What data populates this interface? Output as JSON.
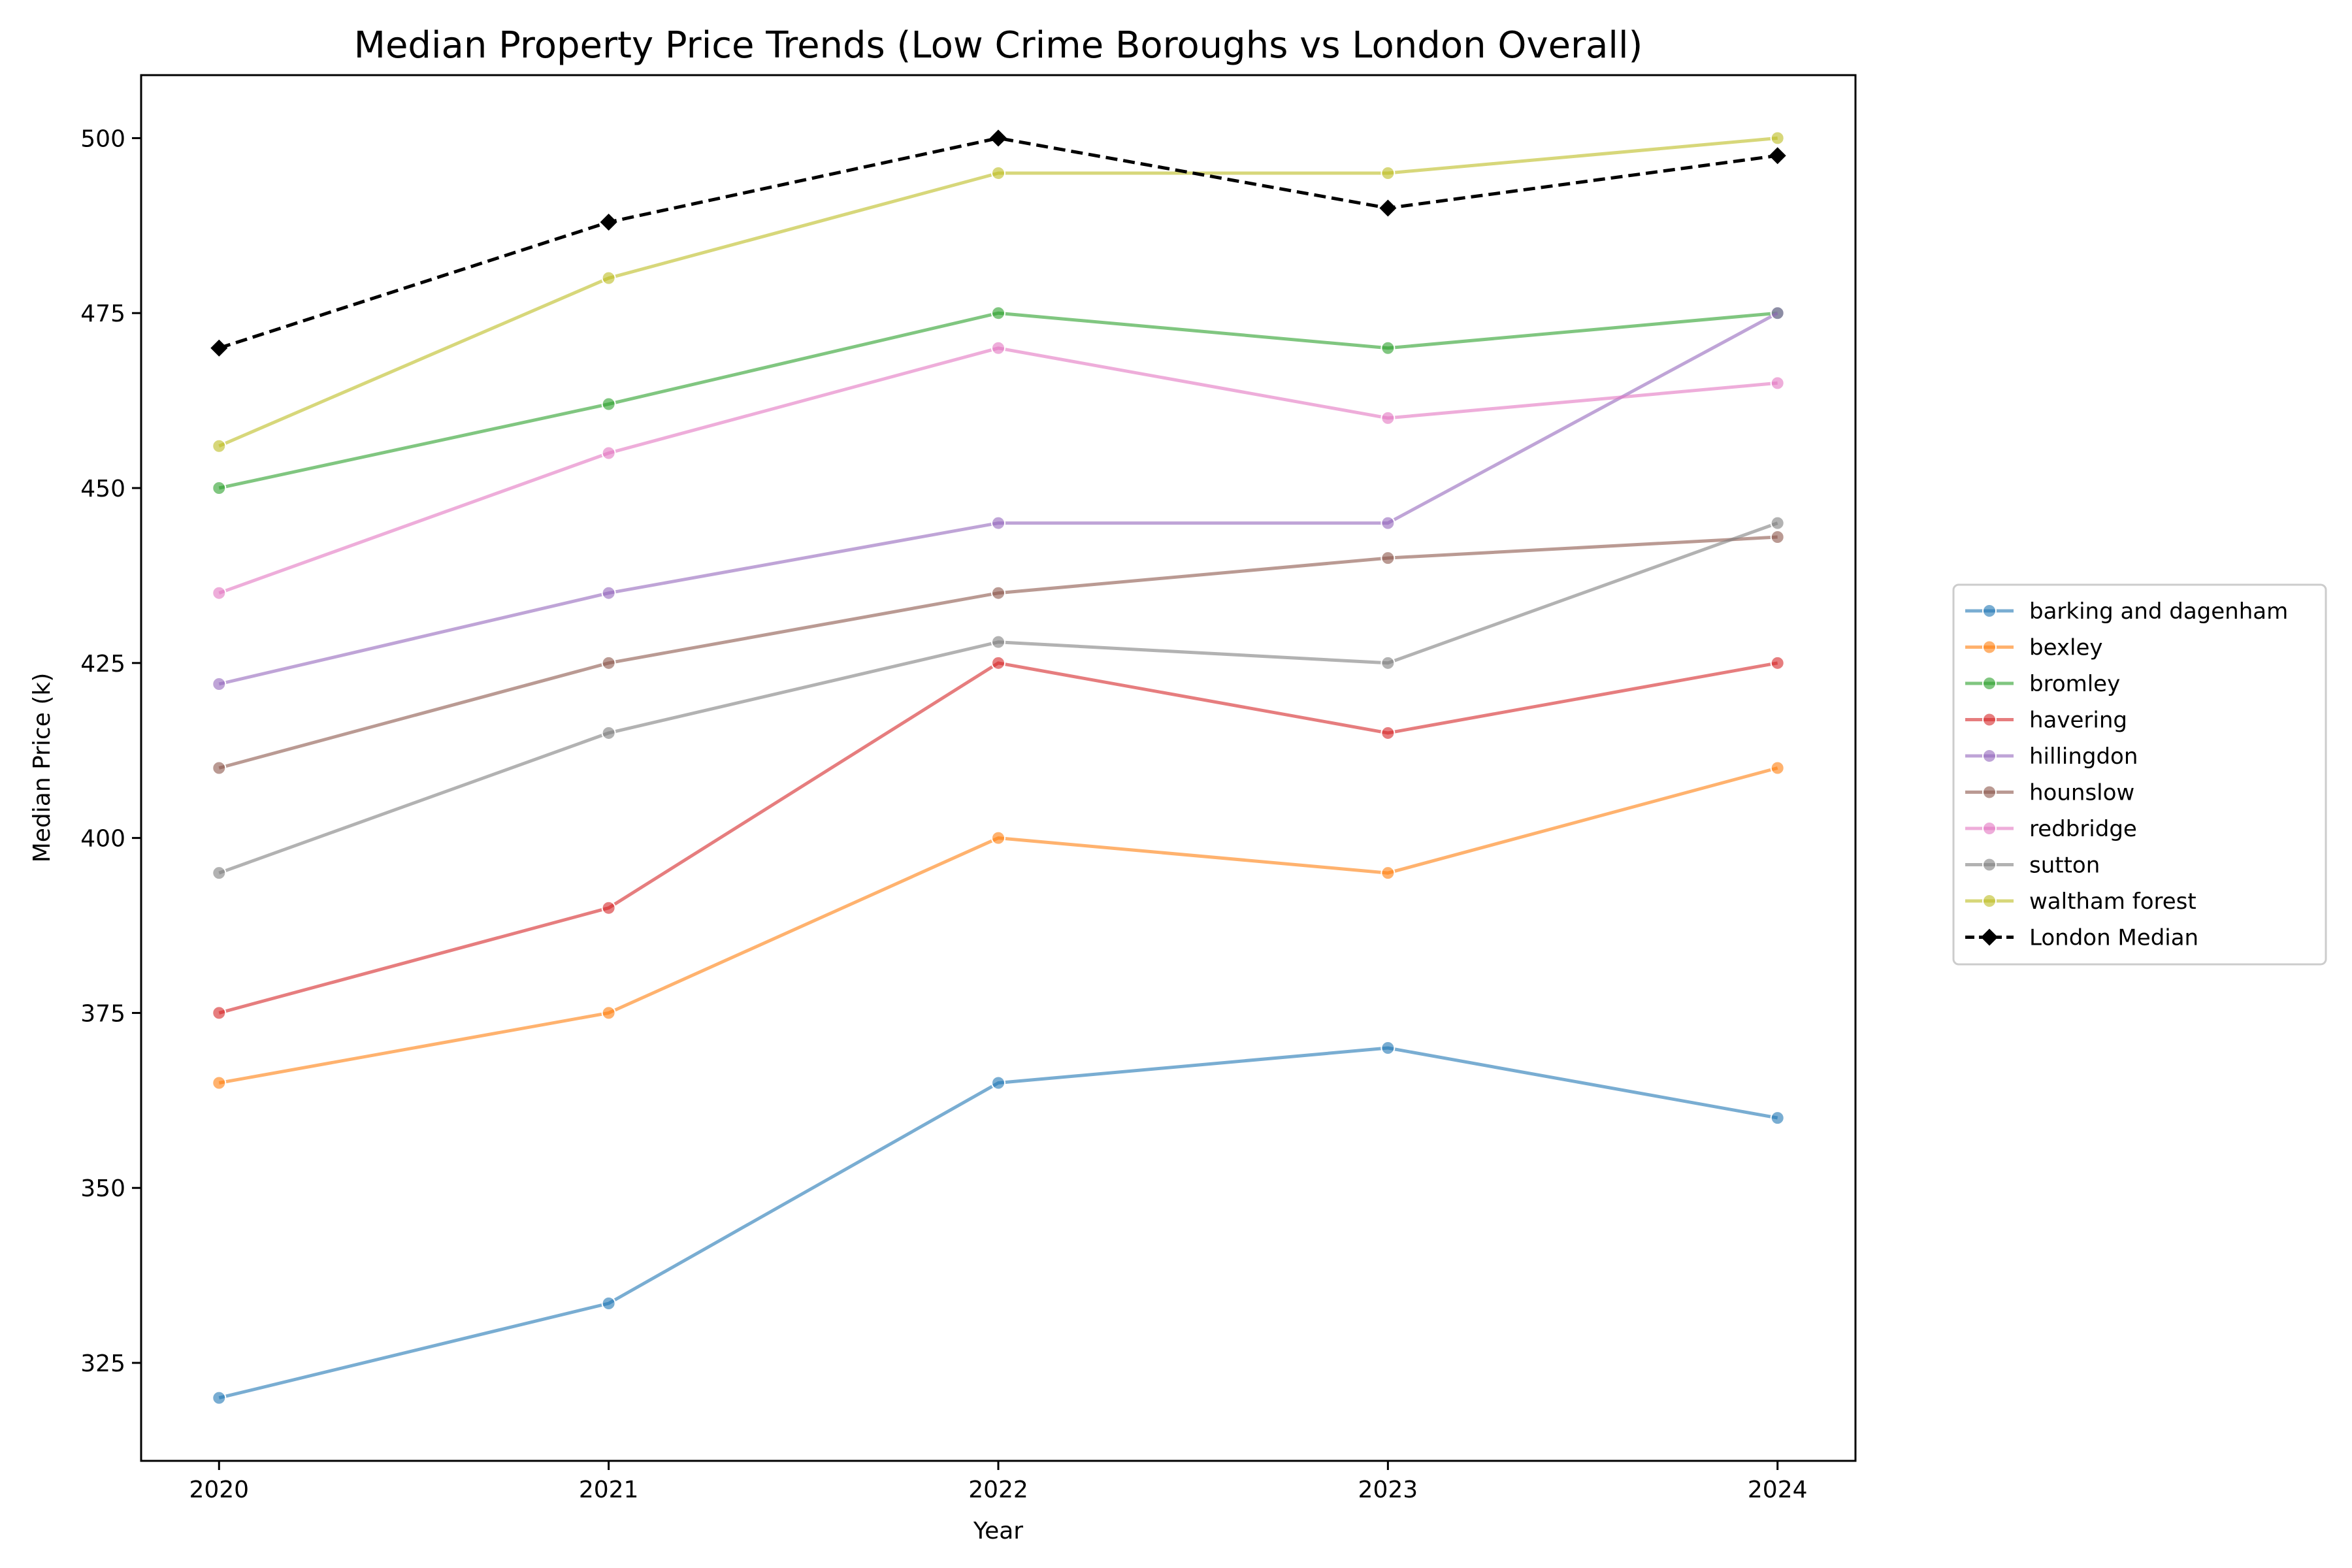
{
  "chart_data": {
    "type": "line",
    "title": "Median Property Price Trends (Low Crime Boroughs vs London Overall)",
    "xlabel": "Year",
    "ylabel": "Median Price (k)",
    "x": [
      2020,
      2021,
      2022,
      2023,
      2024
    ],
    "xlim": [
      2019.8,
      2024.2
    ],
    "ylim": [
      311,
      509
    ],
    "yticks": [
      325,
      350,
      375,
      400,
      425,
      450,
      475,
      500
    ],
    "grid": false,
    "legend_position": "right",
    "series": [
      {
        "name": "barking and dagenham",
        "color": "#1f77b4",
        "values": [
          320,
          333.5,
          365,
          370,
          360
        ]
      },
      {
        "name": "bexley",
        "color": "#ff7f0e",
        "values": [
          365,
          375,
          400,
          395,
          410
        ]
      },
      {
        "name": "bromley",
        "color": "#2ca02c",
        "values": [
          450,
          462,
          475,
          470,
          475
        ]
      },
      {
        "name": "havering",
        "color": "#d62728",
        "values": [
          375,
          390,
          425,
          415,
          425
        ]
      },
      {
        "name": "hillingdon",
        "color": "#9467bd",
        "values": [
          422,
          435,
          445,
          445,
          475
        ]
      },
      {
        "name": "hounslow",
        "color": "#8c564b",
        "values": [
          410,
          425,
          435,
          440,
          443
        ]
      },
      {
        "name": "redbridge",
        "color": "#e377c2",
        "values": [
          435,
          455,
          470,
          460,
          465
        ]
      },
      {
        "name": "sutton",
        "color": "#7f7f7f",
        "values": [
          395,
          415,
          428,
          425,
          445
        ]
      },
      {
        "name": "waltham forest",
        "color": "#bcbd22",
        "values": [
          456,
          480,
          495,
          495,
          500
        ]
      },
      {
        "name": "London Median",
        "color": "#000000",
        "dashed": true,
        "marker": "diamond",
        "values": [
          470,
          488,
          500,
          490,
          497.5
        ]
      }
    ]
  }
}
